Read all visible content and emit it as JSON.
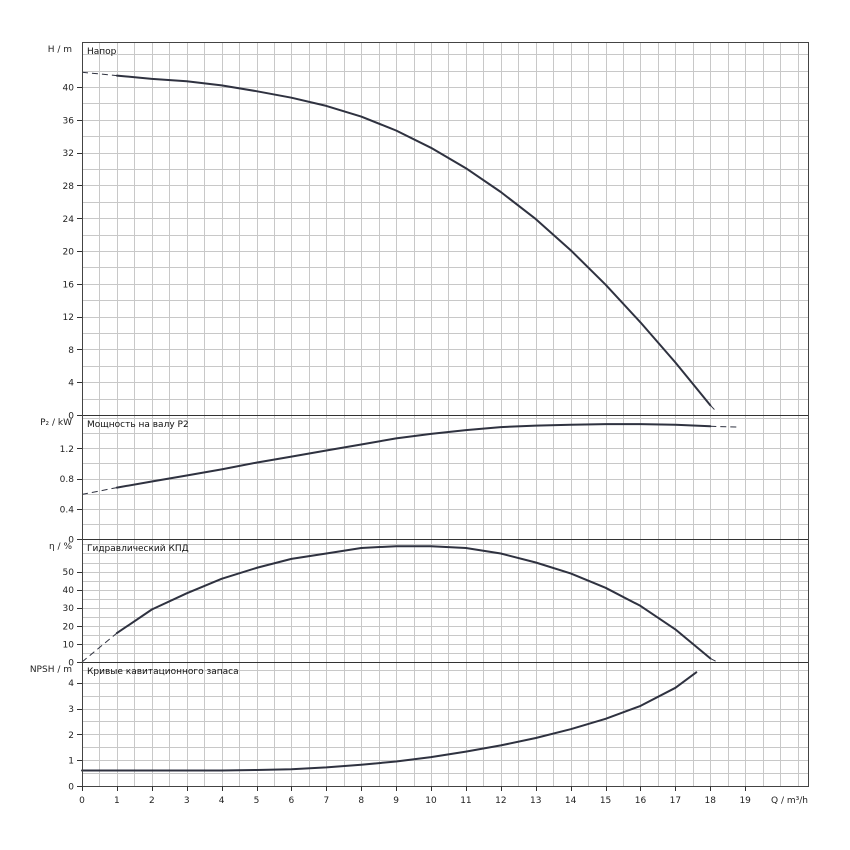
{
  "chart_data": {
    "type": "line",
    "x_unit_label": "Q / m³/h",
    "x_range": [
      0,
      20.8
    ],
    "x_ticks": [
      "0",
      "1",
      "2",
      "3",
      "4",
      "5",
      "6",
      "7",
      "8",
      "9",
      "10",
      "11",
      "12",
      "13",
      "14",
      "15",
      "16",
      "17",
      "18",
      "19"
    ],
    "panels": [
      {
        "id": "head",
        "title": "Напор",
        "ylabel": "H / m",
        "ylim": [
          0,
          45.5
        ],
        "y_ticks": [
          "0",
          "4",
          "8",
          "12",
          "16",
          "20",
          "24",
          "28",
          "32",
          "36",
          "40"
        ],
        "extension_start": [
          [
            0,
            41.8
          ],
          [
            1,
            41.4
          ]
        ],
        "series": {
          "name": "Напор",
          "x": [
            1,
            2,
            3,
            4,
            5,
            6,
            7,
            8,
            9,
            10,
            11,
            12,
            13,
            14,
            15,
            16,
            17,
            18
          ],
          "y": [
            41.4,
            41.0,
            40.7,
            40.2,
            39.5,
            38.7,
            37.7,
            36.4,
            34.7,
            32.6,
            30.1,
            27.2,
            23.9,
            20.1,
            15.9,
            11.3,
            6.4,
            1.2
          ]
        },
        "extension_end": [
          [
            18,
            1.2
          ],
          [
            18.2,
            0.3
          ]
        ]
      },
      {
        "id": "power",
        "title": "Мощность на валу P2",
        "ylabel": "P₂ / kW",
        "ylim": [
          0,
          1.64
        ],
        "y_ticks": [
          "0",
          "0.4",
          "0.8",
          "1.2"
        ],
        "extension_start": [
          [
            0,
            0.59
          ],
          [
            1,
            0.68
          ]
        ],
        "series": {
          "name": "Мощность на валу P2",
          "x": [
            1,
            2,
            3,
            4,
            5,
            6,
            7,
            8,
            9,
            10,
            11,
            12,
            13,
            14,
            15,
            16,
            17,
            18
          ],
          "y": [
            0.68,
            0.76,
            0.84,
            0.92,
            1.01,
            1.09,
            1.17,
            1.25,
            1.33,
            1.39,
            1.44,
            1.48,
            1.5,
            1.51,
            1.52,
            1.52,
            1.51,
            1.49
          ]
        },
        "extension_end": [
          [
            18,
            1.49
          ],
          [
            18.8,
            1.48
          ]
        ]
      },
      {
        "id": "efficiency",
        "title": "Гидравлический КПД",
        "ylabel": "η / %",
        "ylim": [
          0,
          68
        ],
        "y_ticks": [
          "0",
          "10",
          "20",
          "30",
          "40",
          "50"
        ],
        "extension_start": [
          [
            0,
            0
          ],
          [
            1,
            16
          ]
        ],
        "series": {
          "name": "Гидравлический КПД",
          "x": [
            1,
            2,
            3,
            4,
            5,
            6,
            7,
            8,
            9,
            10,
            11,
            12,
            13,
            14,
            15,
            16,
            17,
            18
          ],
          "y": [
            16,
            29,
            38,
            46,
            52,
            57,
            60,
            63,
            64,
            64,
            63,
            60,
            55,
            49,
            41,
            31,
            18,
            2
          ]
        },
        "extension_end": [
          [
            18,
            2
          ],
          [
            18.2,
            0
          ]
        ]
      },
      {
        "id": "npsh",
        "title": "Кривые кавитационного запаса",
        "ylabel": "NPSH / m",
        "ylim": [
          0,
          4.8
        ],
        "y_ticks": [
          "0",
          "1",
          "2",
          "3",
          "4"
        ],
        "series": {
          "name": "Кривые кавитационного запаса",
          "x": [
            0,
            1,
            2,
            3,
            4,
            5,
            6,
            7,
            8,
            9,
            10,
            11,
            12,
            13,
            14,
            15,
            16,
            17,
            17.6
          ],
          "y": [
            0.6,
            0.6,
            0.6,
            0.6,
            0.6,
            0.62,
            0.65,
            0.72,
            0.82,
            0.95,
            1.12,
            1.33,
            1.57,
            1.86,
            2.2,
            2.6,
            3.1,
            3.8,
            4.4
          ]
        }
      }
    ]
  }
}
